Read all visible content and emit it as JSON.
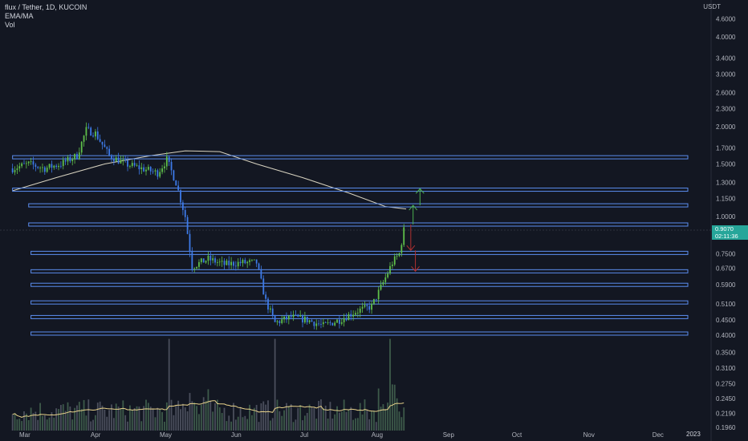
{
  "legend": {
    "symbol": "flux / Tether, 1D, KUCOIN",
    "ind1": "EMA/MA",
    "ind2": "Vol"
  },
  "price_axis": {
    "unit": "USDT",
    "current_price": "0.9070",
    "countdown": "02:11:36"
  },
  "colors": {
    "background": "#131722",
    "up": "#26a69a",
    "down": "#2962ff",
    "up_candle": "#5fbf4a",
    "down_candle": "#3d7ae8",
    "level_stroke": "#5b8def",
    "ma_line": "#d8d3c0",
    "vol_ma": "#e8d28a",
    "arrow_up": "#4caf50",
    "arrow_down": "#b03030"
  },
  "chart_data": {
    "type": "candlestick",
    "scale": "log",
    "ylim": [
      0.2,
      5.0
    ],
    "x_ticks": [
      "Mar",
      "Apr",
      "May",
      "Jun",
      "Jul",
      "Aug",
      "Sep",
      "Oct",
      "Nov",
      "Dec"
    ],
    "x_year_label": "2023",
    "y_ticks": [
      "4.6000",
      "4.0000",
      "3.4000",
      "3.0000",
      "2.6000",
      "2.3000",
      "2.0000",
      "1.7000",
      "1.5000",
      "1.3000",
      "1.1500",
      "1.0000",
      "0.7500",
      "0.6700",
      "0.5900",
      "0.5100",
      "0.4500",
      "0.4000",
      "0.3500",
      "0.3100",
      "0.2750",
      "0.2450",
      "0.2190",
      "0.1960"
    ],
    "y_tick_values": [
      4.6,
      4.0,
      3.4,
      3.0,
      2.6,
      2.3,
      2.0,
      1.7,
      1.5,
      1.3,
      1.15,
      1.0,
      0.75,
      0.67,
      0.59,
      0.51,
      0.45,
      0.4,
      0.35,
      0.31,
      0.275,
      0.245,
      0.219,
      0.196
    ],
    "price_path": [
      [
        "2022-02-24",
        1.45
      ],
      [
        "2022-03-03",
        1.5
      ],
      [
        "2022-03-10",
        1.45
      ],
      [
        "2022-03-17",
        1.5
      ],
      [
        "2022-03-24",
        1.6
      ],
      [
        "2022-03-28",
        1.95
      ],
      [
        "2022-04-01",
        1.9
      ],
      [
        "2022-04-07",
        1.6
      ],
      [
        "2022-04-14",
        1.5
      ],
      [
        "2022-04-21",
        1.45
      ],
      [
        "2022-04-28",
        1.4
      ],
      [
        "2022-05-02",
        1.55
      ],
      [
        "2022-05-06",
        1.3
      ],
      [
        "2022-05-10",
        1.0
      ],
      [
        "2022-05-13",
        0.68
      ],
      [
        "2022-05-20",
        0.72
      ],
      [
        "2022-05-27",
        0.69
      ],
      [
        "2022-06-03",
        0.7
      ],
      [
        "2022-06-10",
        0.7
      ],
      [
        "2022-06-14",
        0.52
      ],
      [
        "2022-06-18",
        0.44
      ],
      [
        "2022-06-25",
        0.46
      ],
      [
        "2022-07-02",
        0.45
      ],
      [
        "2022-07-09",
        0.43
      ],
      [
        "2022-07-16",
        0.45
      ],
      [
        "2022-07-23",
        0.48
      ],
      [
        "2022-07-30",
        0.5
      ],
      [
        "2022-08-04",
        0.6
      ],
      [
        "2022-08-08",
        0.7
      ],
      [
        "2022-08-11",
        0.75
      ],
      [
        "2022-08-13",
        0.9
      ]
    ],
    "ma_line": [
      [
        "2022-02-24",
        1.22
      ],
      [
        "2022-03-15",
        1.35
      ],
      [
        "2022-04-05",
        1.5
      ],
      [
        "2022-04-25",
        1.6
      ],
      [
        "2022-05-10",
        1.66
      ],
      [
        "2022-05-25",
        1.65
      ],
      [
        "2022-06-10",
        1.5
      ],
      [
        "2022-06-30",
        1.35
      ],
      [
        "2022-07-20",
        1.2
      ],
      [
        "2022-08-05",
        1.08
      ],
      [
        "2022-08-14",
        1.06
      ]
    ],
    "horizontal_levels": [
      {
        "price": 1.58,
        "x_start": "2022-02-24"
      },
      {
        "price": 1.23,
        "x_start": "2022-02-24"
      },
      {
        "price": 1.09,
        "x_start": "2022-03-03"
      },
      {
        "price": 0.94,
        "x_start": "2022-03-03"
      },
      {
        "price": 0.755,
        "x_start": "2022-03-04"
      },
      {
        "price": 0.655,
        "x_start": "2022-03-04"
      },
      {
        "price": 0.59,
        "x_start": "2022-03-04"
      },
      {
        "price": 0.515,
        "x_start": "2022-03-04"
      },
      {
        "price": 0.46,
        "x_start": "2022-03-04"
      },
      {
        "price": 0.405,
        "x_start": "2022-03-04"
      }
    ],
    "arrows": [
      {
        "date": "2022-08-16",
        "from": 0.94,
        "to": 0.77,
        "dir": "down"
      },
      {
        "date": "2022-08-17",
        "from": 0.94,
        "to": 1.09,
        "dir": "up"
      },
      {
        "date": "2022-08-18",
        "from": 0.77,
        "to": 0.655,
        "dir": "down"
      },
      {
        "date": "2022-08-20",
        "from": 1.09,
        "to": 1.24,
        "dir": "up"
      }
    ],
    "volume_spikes": [
      {
        "date": "2022-05-03",
        "rel": 0.88
      },
      {
        "date": "2022-06-18",
        "rel": 0.88
      },
      {
        "date": "2022-08-07",
        "rel": 0.88
      }
    ]
  }
}
